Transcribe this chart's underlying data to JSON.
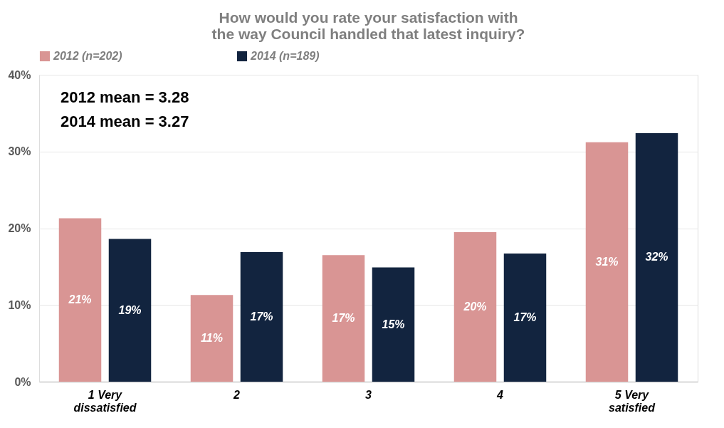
{
  "chart_data": {
    "type": "bar",
    "title": [
      "How would you rate your satisfaction with",
      "the way Council handled that latest inquiry?"
    ],
    "categories": [
      "1 Very dissatisfied",
      "2",
      "3",
      "4",
      "5 Very satisfied"
    ],
    "series": [
      {
        "name": "2012 (n=202)",
        "color": "#d99594",
        "values": [
          21.3,
          11.3,
          16.5,
          19.5,
          31.2
        ],
        "value_labels": [
          "21%",
          "11%",
          "17%",
          "20%",
          "31%"
        ]
      },
      {
        "name": "2014 (n=189)",
        "color": "#12243f",
        "values": [
          18.6,
          16.9,
          14.9,
          16.7,
          32.4
        ],
        "value_labels": [
          "19%",
          "17%",
          "15%",
          "17%",
          "32%"
        ]
      }
    ],
    "ylim": [
      0,
      40
    ],
    "yticks": [
      {
        "value": 0,
        "label": "0%"
      },
      {
        "value": 10,
        "label": "10%"
      },
      {
        "value": 20,
        "label": "20%"
      },
      {
        "value": 30,
        "label": "30%"
      },
      {
        "value": 40,
        "label": "40%"
      }
    ],
    "grid": "y",
    "legend": "top",
    "annotations": [
      "2012 mean = 3.28",
      "2014 mean = 3.27"
    ]
  }
}
